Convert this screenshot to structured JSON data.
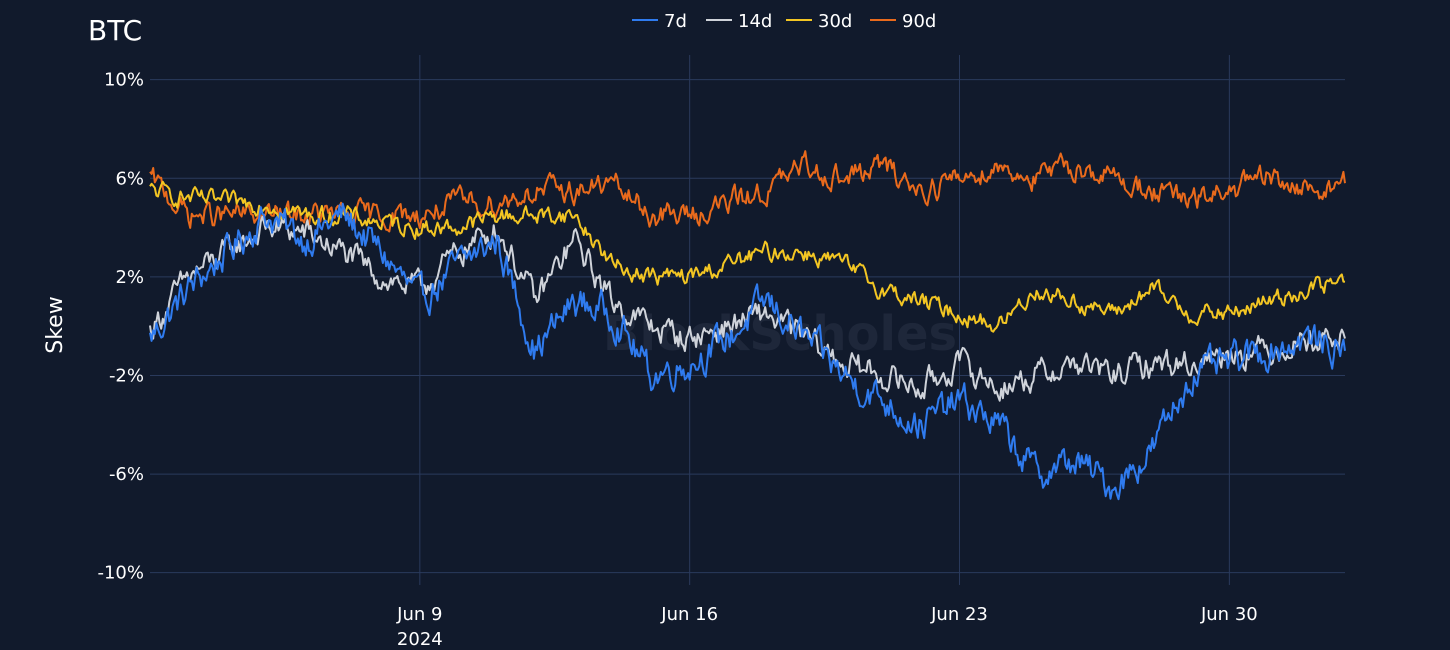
{
  "chart_data": {
    "type": "line",
    "title": "BTC",
    "xlabel": "",
    "ylabel": "Skew",
    "x_range": [
      "2024-06-02",
      "2024-07-03"
    ],
    "ylim": [
      -10.5,
      11
    ],
    "y_ticks": [
      10,
      6,
      2,
      -2,
      -6,
      -10
    ],
    "y_tick_labels": [
      "10%",
      "6%",
      "2%",
      "-2%",
      "-6%",
      "-10%"
    ],
    "x_ticks": [
      "2024-06-09",
      "2024-06-16",
      "2024-06-23",
      "2024-06-30"
    ],
    "x_tick_labels": [
      "Jun 9",
      "Jun 16",
      "Jun 23",
      "Jun 30"
    ],
    "x_tick_sublabel": "2024",
    "grid": true,
    "legend_position": "top-center",
    "watermark": "BlockScholes",
    "series": [
      {
        "name": "7d",
        "color": "#2f7bef",
        "x": [
          "2024-06-02",
          "2024-06-03",
          "2024-06-04",
          "2024-06-05",
          "2024-06-06",
          "2024-06-07",
          "2024-06-08",
          "2024-06-09",
          "2024-06-10",
          "2024-06-11",
          "2024-06-12",
          "2024-06-13",
          "2024-06-14",
          "2024-06-15",
          "2024-06-16",
          "2024-06-17",
          "2024-06-18",
          "2024-06-19",
          "2024-06-20",
          "2024-06-21",
          "2024-06-22",
          "2024-06-23",
          "2024-06-24",
          "2024-06-25",
          "2024-06-26",
          "2024-06-27",
          "2024-06-28",
          "2024-06-29",
          "2024-06-30",
          "2024-07-01",
          "2024-07-02",
          "2024-07-03"
        ],
        "values": [
          -0.5,
          1.5,
          3.0,
          4.5,
          3.5,
          4.5,
          3.0,
          1.0,
          2.5,
          3.5,
          -1.0,
          1.0,
          0.5,
          -2.0,
          -1.5,
          -0.5,
          1.0,
          -0.5,
          -2.0,
          -3.0,
          -4.0,
          -3.0,
          -4.0,
          -6.0,
          -5.5,
          -6.5,
          -5.0,
          -2.0,
          -1.5,
          -1.0,
          -0.5,
          -1.0
        ]
      },
      {
        "name": "14d",
        "color": "#cfd3da",
        "x": [
          "2024-06-02",
          "2024-06-03",
          "2024-06-04",
          "2024-06-05",
          "2024-06-06",
          "2024-06-07",
          "2024-06-08",
          "2024-06-09",
          "2024-06-10",
          "2024-06-11",
          "2024-06-12",
          "2024-06-13",
          "2024-06-14",
          "2024-06-15",
          "2024-06-16",
          "2024-06-17",
          "2024-06-18",
          "2024-06-19",
          "2024-06-20",
          "2024-06-21",
          "2024-06-22",
          "2024-06-23",
          "2024-06-24",
          "2024-06-25",
          "2024-06-26",
          "2024-06-27",
          "2024-06-28",
          "2024-06-29",
          "2024-06-30",
          "2024-07-01",
          "2024-07-02",
          "2024-07-03"
        ],
        "values": [
          -0.2,
          2.0,
          3.0,
          4.0,
          3.8,
          3.0,
          2.0,
          1.5,
          3.0,
          4.0,
          1.0,
          3.5,
          1.0,
          0.0,
          -0.5,
          0.0,
          0.5,
          -0.5,
          -1.5,
          -2.0,
          -2.5,
          -1.5,
          -2.5,
          -2.0,
          -1.5,
          -2.0,
          -1.5,
          -1.5,
          -1.0,
          -1.0,
          -0.5,
          -0.5
        ]
      },
      {
        "name": "30d",
        "color": "#f3c623",
        "x": [
          "2024-06-02",
          "2024-06-03",
          "2024-06-04",
          "2024-06-05",
          "2024-06-06",
          "2024-06-07",
          "2024-06-08",
          "2024-06-09",
          "2024-06-10",
          "2024-06-11",
          "2024-06-12",
          "2024-06-13",
          "2024-06-14",
          "2024-06-15",
          "2024-06-16",
          "2024-06-17",
          "2024-06-18",
          "2024-06-19",
          "2024-06-20",
          "2024-06-21",
          "2024-06-22",
          "2024-06-23",
          "2024-06-24",
          "2024-06-25",
          "2024-06-26",
          "2024-06-27",
          "2024-06-28",
          "2024-06-29",
          "2024-06-30",
          "2024-07-01",
          "2024-07-02",
          "2024-07-03"
        ],
        "values": [
          5.5,
          5.2,
          5.0,
          5.0,
          4.5,
          4.5,
          4.2,
          4.0,
          4.0,
          4.5,
          4.5,
          4.5,
          2.5,
          2.0,
          2.0,
          2.5,
          3.0,
          3.0,
          2.5,
          1.5,
          1.0,
          0.5,
          0.0,
          1.5,
          1.0,
          0.5,
          1.5,
          0.5,
          0.5,
          1.0,
          1.5,
          1.8
        ]
      },
      {
        "name": "90d",
        "color": "#e96a1c",
        "x": [
          "2024-06-02",
          "2024-06-03",
          "2024-06-04",
          "2024-06-05",
          "2024-06-06",
          "2024-06-07",
          "2024-06-08",
          "2024-06-09",
          "2024-06-10",
          "2024-06-11",
          "2024-06-12",
          "2024-06-13",
          "2024-06-14",
          "2024-06-15",
          "2024-06-16",
          "2024-06-17",
          "2024-06-18",
          "2024-06-19",
          "2024-06-20",
          "2024-06-21",
          "2024-06-22",
          "2024-06-23",
          "2024-06-24",
          "2024-06-25",
          "2024-06-26",
          "2024-06-27",
          "2024-06-28",
          "2024-06-29",
          "2024-06-30",
          "2024-07-01",
          "2024-07-02",
          "2024-07-03"
        ],
        "values": [
          6.0,
          4.5,
          4.5,
          4.5,
          4.5,
          4.5,
          4.5,
          4.5,
          5.0,
          5.0,
          5.5,
          5.5,
          5.8,
          4.5,
          4.5,
          5.0,
          5.5,
          6.5,
          6.0,
          6.5,
          5.5,
          6.0,
          6.5,
          6.0,
          6.5,
          6.0,
          5.5,
          5.0,
          5.5,
          6.0,
          5.5,
          5.8
        ]
      }
    ]
  }
}
